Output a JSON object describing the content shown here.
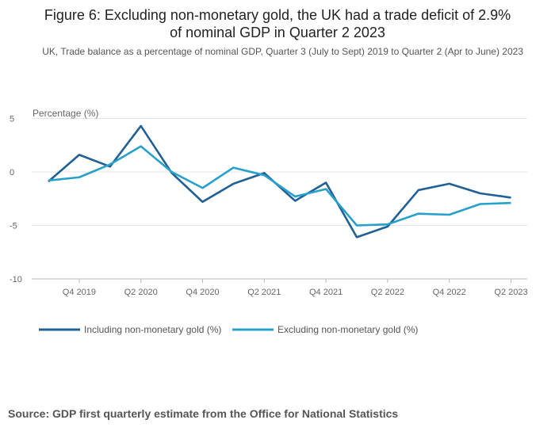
{
  "title_line1": "Figure 6: Excluding non-monetary gold, the UK had a trade deficit of 2.9%",
  "title_line2": "of nominal GDP in Quarter 2 2023",
  "subtitle": "UK, Trade balance as a percentage of nominal GDP, Quarter 3 (July to Sept) 2019 to Quarter 2 (Apr to June) 2023",
  "source": "Source: GDP first quarterly estimate from the Office for National Statistics",
  "chart_data": {
    "type": "line",
    "ylabel": "Percentage (%)",
    "ylim": [
      -10,
      5
    ],
    "yticks": [
      5,
      0,
      -5,
      -10
    ],
    "x": [
      "Q3 2019",
      "Q4 2019",
      "Q1 2020",
      "Q2 2020",
      "Q3 2020",
      "Q4 2020",
      "Q1 2021",
      "Q2 2021",
      "Q3 2021",
      "Q4 2021",
      "Q1 2022",
      "Q2 2022",
      "Q3 2022",
      "Q4 2022",
      "Q1 2023",
      "Q2 2023"
    ],
    "xtick_labels": [
      "Q4 2019",
      "Q2 2020",
      "Q4 2020",
      "Q2 2021",
      "Q4 2021",
      "Q2 2022",
      "Q4 2022",
      "Q2 2023"
    ],
    "grid": true,
    "legend_position": "bottom-left",
    "series": [
      {
        "name": "Including non-monetary gold (%)",
        "color": "#206095",
        "values": [
          -0.9,
          1.6,
          0.5,
          4.3,
          -0.1,
          -2.8,
          -1.1,
          -0.1,
          -2.7,
          -1.0,
          -6.1,
          -5.1,
          -1.7,
          -1.1,
          -2.0,
          -2.4
        ]
      },
      {
        "name": "Excluding non-monetary gold (%)",
        "color": "#27a0cc",
        "values": [
          -0.8,
          -0.5,
          0.7,
          2.4,
          0.0,
          -1.5,
          0.4,
          -0.3,
          -2.3,
          -1.6,
          -5.0,
          -4.9,
          -3.9,
          -4.0,
          -3.0,
          -2.9
        ]
      }
    ]
  }
}
